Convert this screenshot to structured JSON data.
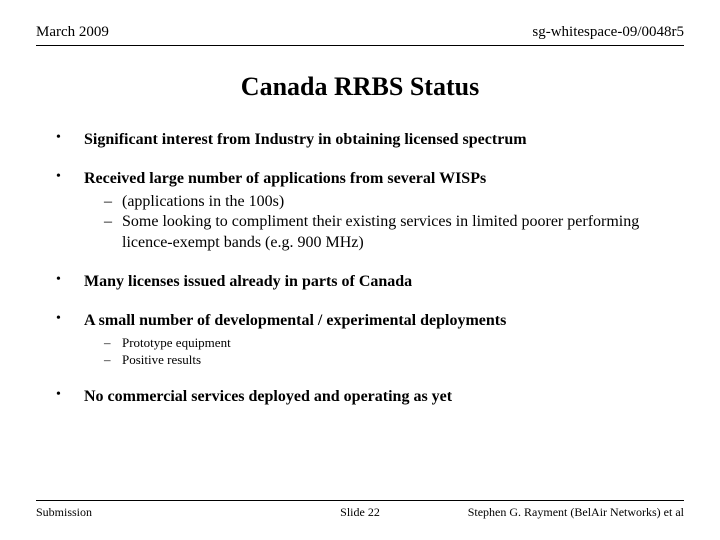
{
  "header": {
    "left": "March 2009",
    "right": "sg-whitespace-09/0048r5"
  },
  "title": "Canada RRBS Status",
  "bullets": [
    {
      "text": "Significant interest from Industry in obtaining licensed spectrum",
      "sub": [],
      "sub_small": false
    },
    {
      "text": "Received large number of applications from several WISPs",
      "sub": [
        "(applications in the 100s)",
        "Some looking to compliment their existing services in limited poorer performing licence-exempt bands (e.g. 900 MHz)"
      ],
      "sub_small": false
    },
    {
      "text": "Many licenses issued already in parts of Canada",
      "sub": [],
      "sub_small": false
    },
    {
      "text": "A small number of developmental / experimental deployments",
      "sub": [
        "Prototype equipment",
        "Positive results"
      ],
      "sub_small": true
    },
    {
      "text": "No commercial services deployed and operating as yet",
      "sub": [],
      "sub_small": false
    }
  ],
  "footer": {
    "left": "Submission",
    "center": "Slide 22",
    "right": "Stephen G. Rayment (BelAir Networks) et al"
  }
}
